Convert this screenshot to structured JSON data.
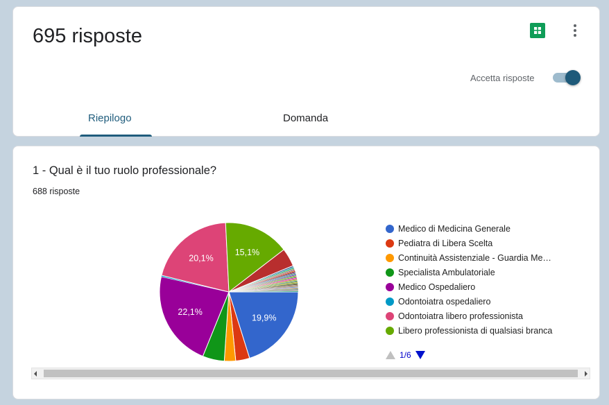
{
  "header": {
    "responses_title": "695 risposte",
    "accept_label": "Accetta risposte",
    "accepting": true,
    "sheets_icon": "google-sheets-icon",
    "more_icon": "more-vert-icon"
  },
  "tabs": {
    "summary": "Riepilogo",
    "question": "Domanda",
    "active": "summary"
  },
  "question": {
    "title": "1 - Qual è il tuo ruolo professionale?",
    "count": "688 risposte"
  },
  "legend": {
    "items": [
      {
        "label": "Medico di Medicina Generale",
        "color": "#3366cc"
      },
      {
        "label": "Pediatra di Libera Scelta",
        "color": "#dc3912"
      },
      {
        "label": "Continuità Assistenziale - Guardia Me…",
        "color": "#ff9900"
      },
      {
        "label": "Specialista Ambulatoriale",
        "color": "#109618"
      },
      {
        "label": "Medico Ospedaliero",
        "color": "#990099"
      },
      {
        "label": "Odontoiatra ospedaliero",
        "color": "#0099c6"
      },
      {
        "label": "Odontoiatra libero professionista",
        "color": "#dd4477"
      },
      {
        "label": "Libero professionista di qualsiasi branca",
        "color": "#66aa00"
      }
    ],
    "page": "1/6"
  },
  "chart_data": {
    "type": "pie",
    "slices": [
      {
        "label": "Medico di Medicina Generale",
        "value": 19.9,
        "color": "#3366cc",
        "text": "19,9%"
      },
      {
        "label": "Pediatra di Libera Scelta",
        "value": 3.2,
        "color": "#dc3912",
        "text": ""
      },
      {
        "label": "Continuità Assistenziale - Guardia Me…",
        "value": 2.6,
        "color": "#ff9900",
        "text": ""
      },
      {
        "label": "Specialista Ambulatoriale",
        "value": 5.0,
        "color": "#109618",
        "text": ""
      },
      {
        "label": "Medico Ospedaliero",
        "value": 22.1,
        "color": "#990099",
        "text": "22,1%"
      },
      {
        "label": "Odontoiatra ospedaliero",
        "value": 0.3,
        "color": "#0099c6",
        "text": ""
      },
      {
        "label": "Odontoiatra libero professionista",
        "value": 20.1,
        "color": "#dd4477",
        "text": "20,1%"
      },
      {
        "label": "Libero professionista di qualsiasi branca",
        "value": 15.1,
        "color": "#66aa00",
        "text": "15,1%"
      },
      {
        "label": "",
        "value": 4.2,
        "color": "#b82e2e",
        "text": ""
      },
      {
        "label": "",
        "value": 0.4,
        "color": "#316395",
        "text": ""
      },
      {
        "label": "",
        "value": 0.3,
        "color": "#22aa99",
        "text": ""
      },
      {
        "label": "",
        "value": 0.2,
        "color": "#aaaa11",
        "text": ""
      },
      {
        "label": "",
        "value": 0.2,
        "color": "#6633cc",
        "text": ""
      },
      {
        "label": "",
        "value": 0.2,
        "color": "#e67300",
        "text": ""
      },
      {
        "label": "",
        "value": 0.2,
        "color": "#8b0707",
        "text": ""
      },
      {
        "label": "",
        "value": 0.2,
        "color": "#651067",
        "text": ""
      },
      {
        "label": "",
        "value": 0.2,
        "color": "#329262",
        "text": ""
      },
      {
        "label": "",
        "value": 0.2,
        "color": "#5574a6",
        "text": ""
      },
      {
        "label": "",
        "value": 0.2,
        "color": "#3b3eac",
        "text": ""
      },
      {
        "label": "",
        "value": 0.2,
        "color": "#b77322",
        "text": ""
      },
      {
        "label": "",
        "value": 0.2,
        "color": "#16d620",
        "text": ""
      },
      {
        "label": "",
        "value": 0.2,
        "color": "#b91383",
        "text": ""
      },
      {
        "label": "",
        "value": 0.2,
        "color": "#f4359e",
        "text": ""
      },
      {
        "label": "",
        "value": 0.2,
        "color": "#9c5935",
        "text": ""
      },
      {
        "label": "",
        "value": 0.2,
        "color": "#a9c413",
        "text": ""
      },
      {
        "label": "",
        "value": 0.2,
        "color": "#2a778d",
        "text": ""
      },
      {
        "label": "",
        "value": 0.2,
        "color": "#668d1c",
        "text": ""
      },
      {
        "label": "",
        "value": 0.2,
        "color": "#bea413",
        "text": ""
      },
      {
        "label": "",
        "value": 0.2,
        "color": "#0c5922",
        "text": ""
      },
      {
        "label": "",
        "value": 0.2,
        "color": "#743411",
        "text": ""
      },
      {
        "label": "",
        "value": 0.2,
        "color": "#7b7b7b",
        "text": ""
      },
      {
        "label": "",
        "value": 0.2,
        "color": "#aa6633",
        "text": ""
      },
      {
        "label": "",
        "value": 0.2,
        "color": "#4e9bd0",
        "text": ""
      },
      {
        "label": "",
        "value": 0.2,
        "color": "#cc7799",
        "text": ""
      },
      {
        "label": "",
        "value": 0.2,
        "color": "#77aa33",
        "text": ""
      },
      {
        "label": "",
        "value": 0.2,
        "color": "#555599",
        "text": ""
      },
      {
        "label": "",
        "value": 0.2,
        "color": "#999955",
        "text": ""
      },
      {
        "label": "",
        "value": 0.2,
        "color": "#33aa99",
        "text": ""
      }
    ]
  }
}
